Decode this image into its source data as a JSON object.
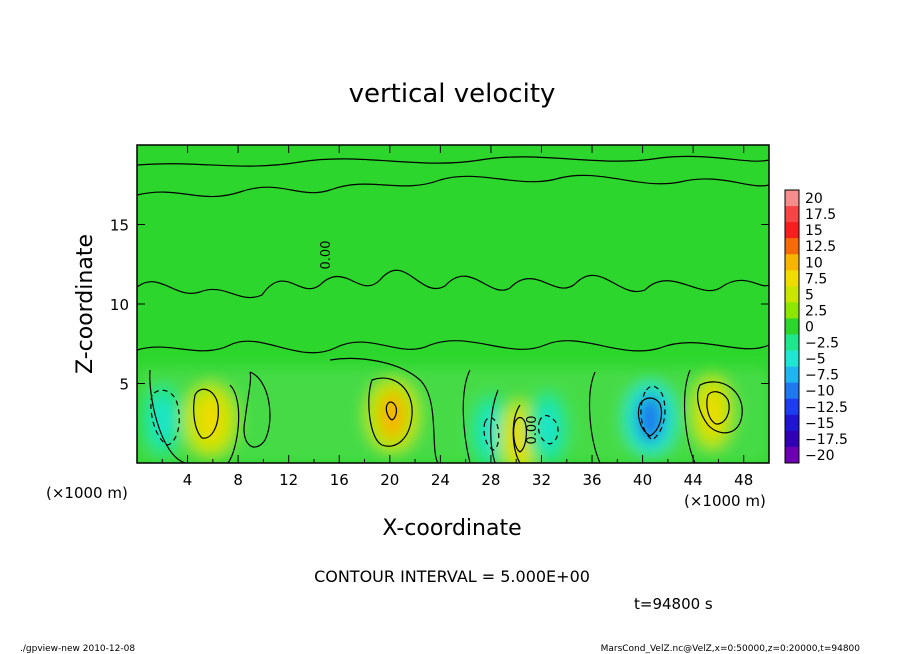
{
  "chart_data": {
    "type": "heatmap",
    "title": "vertical velocity",
    "xlabel": "X-coordinate",
    "ylabel": "Z-coordinate",
    "x_unit": "(×1000 m)",
    "y_unit": "(×1000 m)",
    "xlim": [
      0,
      50
    ],
    "ylim": [
      0,
      20
    ],
    "x_ticks": [
      4,
      8,
      12,
      16,
      20,
      24,
      28,
      32,
      36,
      40,
      44,
      48
    ],
    "y_ticks": [
      5,
      10,
      15
    ],
    "contour_interval_text": "CONTOUR INTERVAL = 5.000E+00",
    "contour_label": "0.00",
    "time_text": "t=94800 s",
    "colorbar": {
      "labels": [
        "20",
        "17.5",
        "15",
        "12.5",
        "10",
        "7.5",
        "5",
        "2.5",
        "0",
        "−2.5",
        "−5",
        "−7.5",
        "−10",
        "−12.5",
        "−15",
        "−17.5",
        "−20"
      ],
      "colors": [
        "#f78c8c",
        "#f74545",
        "#f71e1e",
        "#f76a0a",
        "#f7b400",
        "#f0dc00",
        "#c8e600",
        "#8ce600",
        "#2cd62c",
        "#1ee68c",
        "#1ee6d2",
        "#1eb4f0",
        "#1e78f0",
        "#1e3cf0",
        "#1e14d2",
        "#3200b4",
        "#6e00b4"
      ]
    },
    "features": [
      {
        "x": 2.0,
        "z": 2.7,
        "value": -6,
        "kind": "downdraft"
      },
      {
        "x": 5.8,
        "z": 2.7,
        "value": 8,
        "kind": "updraft"
      },
      {
        "x": 20.2,
        "z": 3.0,
        "value": 9,
        "kind": "updraft"
      },
      {
        "x": 28.0,
        "z": 2.0,
        "value": -4,
        "kind": "downdraft"
      },
      {
        "x": 30.3,
        "z": 1.6,
        "value": 7,
        "kind": "updraft"
      },
      {
        "x": 32.5,
        "z": 2.2,
        "value": -4,
        "kind": "downdraft"
      },
      {
        "x": 40.6,
        "z": 2.8,
        "value": -9,
        "kind": "downdraft"
      },
      {
        "x": 45.5,
        "z": 3.2,
        "value": 7,
        "kind": "updraft"
      }
    ]
  },
  "footer": {
    "left": "./gpview-new  2010-12-08",
    "right": "MarsCond_VelZ.nc@VelZ,x=0:50000,z=0:20000,t=94800"
  }
}
